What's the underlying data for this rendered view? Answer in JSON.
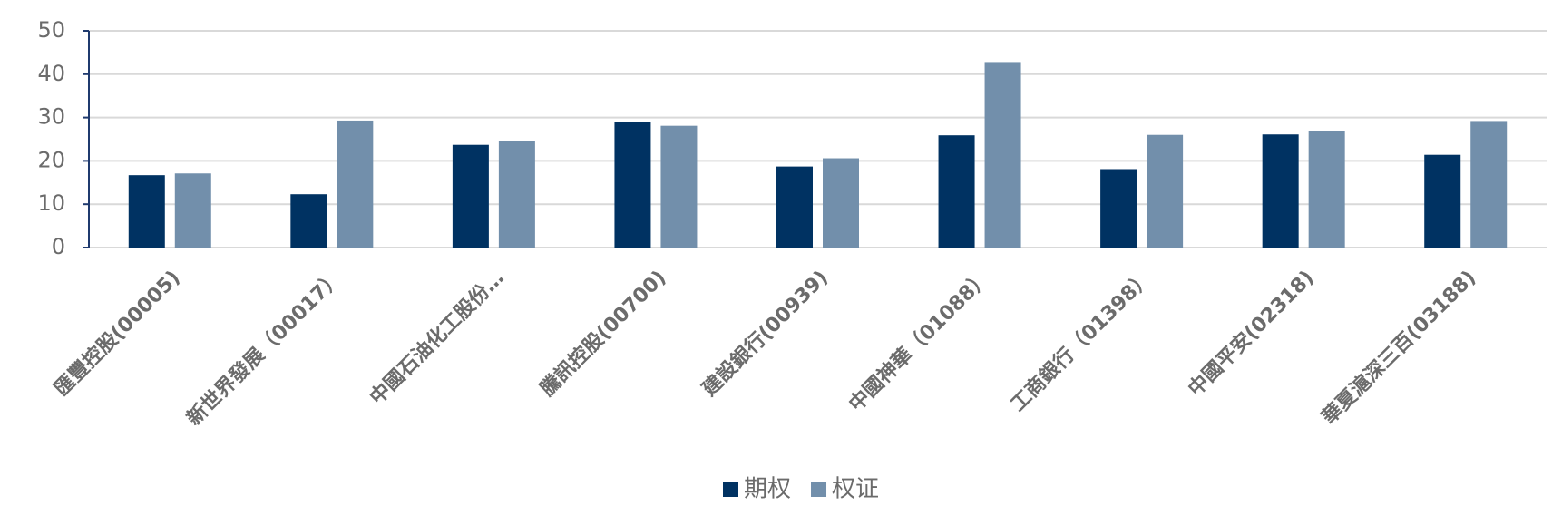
{
  "chart_data": {
    "type": "bar",
    "categories": [
      "匯豐控股(00005)",
      "新世界發展（00017）",
      "中國石油化工股份…",
      "騰訊控股(00700)",
      "建設銀行(00939)",
      "中國神華（01088）",
      "工商銀行（01398）",
      "中國平安(02318)",
      "華夏滬深三百(03188)"
    ],
    "series": [
      {
        "name": "期权",
        "color": "#003262",
        "values": [
          16.7,
          12.3,
          23.7,
          29.0,
          18.7,
          25.9,
          18.1,
          26.1,
          21.4
        ]
      },
      {
        "name": "权证",
        "color": "#728fab",
        "values": [
          17.1,
          29.3,
          24.6,
          28.1,
          20.6,
          42.8,
          26.0,
          26.9,
          29.2
        ]
      }
    ],
    "ylim": [
      0,
      50
    ],
    "yticks": [
      0,
      10,
      20,
      30,
      40,
      50
    ],
    "grid": true,
    "legend": "bottom"
  }
}
